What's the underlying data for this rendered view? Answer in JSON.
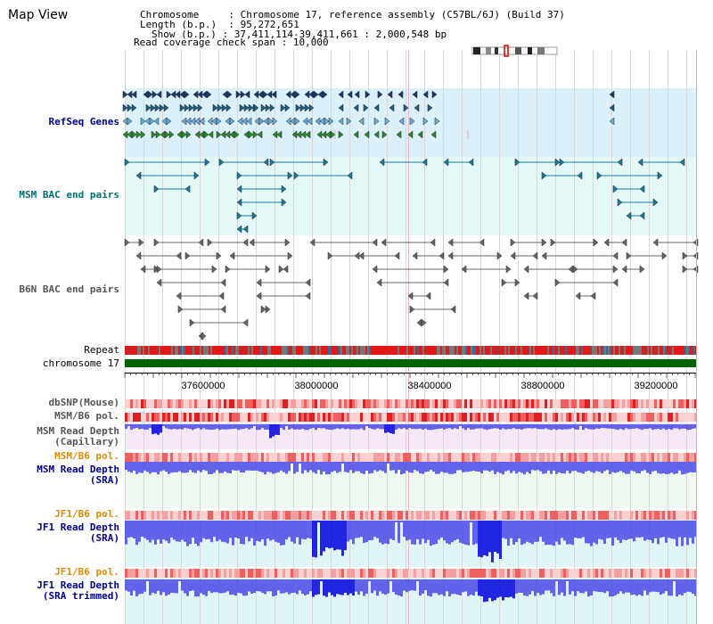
{
  "title": "Map View",
  "info": {
    "chromosome_label": "Chromosome",
    "chromosome_value": "Chromosome 17, reference assembly (C57BL/6J) (Build 37)",
    "length_label": "Length (b.p.)",
    "length_value": "95,272,651",
    "show_label": "Show (b.p.)",
    "show_value": "37,411,114-39,411,661 : 2,000,548 bp",
    "coverage_label": "Read coverage check span",
    "coverage_value": "10,000"
  },
  "tracks": {
    "refseq": "RefSeq Genes",
    "msm_bac": "MSM BAC end pairs",
    "b6n_bac": "B6N BAC end pairs",
    "repeat": "Repeat",
    "chromosome": "chromosome 17",
    "dbsnp": "dbSNP(Mouse)",
    "msm_b6_pol_1": "MSM/B6 pol.",
    "msm_depth_cap": "MSM Read Depth\n(Capillary)",
    "msm_b6_pol_2": "MSM/B6 pol.",
    "msm_depth_sra": "MSM Read Depth\n(SRA)",
    "jf1_b6_pol_1": "JF1/B6 pol.",
    "jf1_depth_sra": "JF1 Read Depth\n(SRA)",
    "jf1_b6_pol_2": "JF1/B6 pol.",
    "jf1_depth_trim": "JF1 Read Depth\n(SRA trimmed)"
  },
  "axis": {
    "ticks": [
      "37600000",
      "38000000",
      "38400000",
      "38800000",
      "39200000"
    ]
  },
  "colors": {
    "refseq_bg": "#dcf0fa",
    "msm_bac_bg": "#e4f8f8",
    "depth_bg": "#f7e8f7",
    "sra_bg": "#eef8ee",
    "jf1_bg": "#e0f6f6",
    "depth_blue": "#4a4ae8",
    "depth_dark": "#0000dd",
    "chromosome_green": "#006400"
  }
}
